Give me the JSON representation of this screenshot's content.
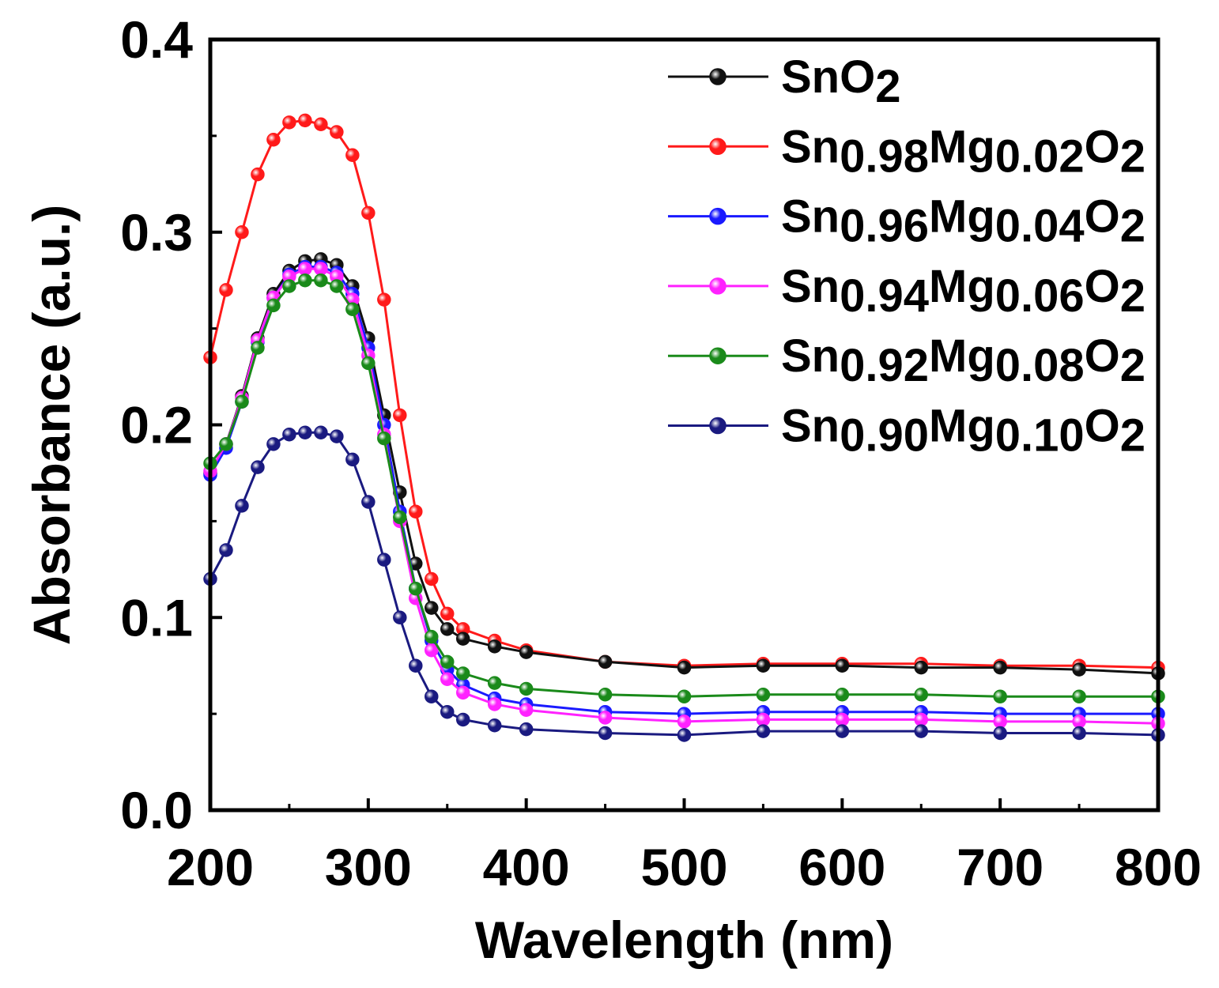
{
  "chart_data": {
    "type": "scatter",
    "xlabel": "Wavelength (nm)",
    "ylabel": "Absorbance (a.u.)",
    "xlim": [
      200,
      800
    ],
    "ylim": [
      0.0,
      0.4
    ],
    "x_ticks": [
      "200",
      "300",
      "400",
      "500",
      "600",
      "700",
      "800"
    ],
    "y_ticks": [
      "0.0",
      "0.1",
      "0.2",
      "0.3",
      "0.4"
    ],
    "grid": false,
    "legend_position": "top-right",
    "series": [
      {
        "name": "SnO2",
        "label": {
          "parts": [
            {
              "t": "SnO",
              "s": 0
            },
            {
              "t": "2",
              "s": -1
            }
          ]
        },
        "color": "#111111",
        "x": [
          200,
          210,
          220,
          230,
          240,
          250,
          260,
          270,
          280,
          290,
          300,
          310,
          320,
          330,
          340,
          350,
          360,
          380,
          400,
          450,
          500,
          550,
          600,
          650,
          700,
          750,
          800
        ],
        "y": [
          0.175,
          0.19,
          0.215,
          0.245,
          0.268,
          0.28,
          0.285,
          0.286,
          0.283,
          0.272,
          0.245,
          0.205,
          0.165,
          0.128,
          0.105,
          0.094,
          0.089,
          0.085,
          0.082,
          0.077,
          0.074,
          0.075,
          0.075,
          0.074,
          0.074,
          0.073,
          0.071
        ]
      },
      {
        "name": "Sn0.98Mg0.02O2",
        "label": {
          "parts": [
            {
              "t": "Sn",
              "s": 0
            },
            {
              "t": "0.98",
              "s": -1
            },
            {
              "t": "Mg",
              "s": 1
            },
            {
              "t": "0.02",
              "s": -1
            },
            {
              "t": "O",
              "s": 1
            },
            {
              "t": "2",
              "s": -1
            }
          ]
        },
        "color": "#ff1a1a",
        "x": [
          200,
          210,
          220,
          230,
          240,
          250,
          260,
          270,
          280,
          290,
          300,
          310,
          320,
          330,
          340,
          350,
          360,
          380,
          400,
          450,
          500,
          550,
          600,
          650,
          700,
          750,
          800
        ],
        "y": [
          0.235,
          0.27,
          0.3,
          0.33,
          0.348,
          0.357,
          0.358,
          0.356,
          0.352,
          0.34,
          0.31,
          0.265,
          0.205,
          0.155,
          0.12,
          0.102,
          0.094,
          0.088,
          0.083,
          0.077,
          0.075,
          0.076,
          0.076,
          0.076,
          0.075,
          0.075,
          0.074
        ]
      },
      {
        "name": "Sn0.96Mg0.04O2",
        "label": {
          "parts": [
            {
              "t": "Sn",
              "s": 0
            },
            {
              "t": "0.96",
              "s": -1
            },
            {
              "t": "Mg",
              "s": 1
            },
            {
              "t": "0.04",
              "s": -1
            },
            {
              "t": "O",
              "s": 1
            },
            {
              "t": "2",
              "s": -1
            }
          ]
        },
        "color": "#1a1aff",
        "x": [
          200,
          210,
          220,
          230,
          240,
          250,
          260,
          270,
          280,
          290,
          300,
          310,
          320,
          330,
          340,
          350,
          360,
          380,
          400,
          450,
          500,
          550,
          600,
          650,
          700,
          750,
          800
        ],
        "y": [
          0.174,
          0.188,
          0.212,
          0.243,
          0.266,
          0.278,
          0.282,
          0.282,
          0.279,
          0.268,
          0.24,
          0.2,
          0.155,
          0.115,
          0.088,
          0.073,
          0.065,
          0.058,
          0.055,
          0.051,
          0.05,
          0.051,
          0.051,
          0.051,
          0.05,
          0.05,
          0.05
        ]
      },
      {
        "name": "Sn0.94Mg0.06O2",
        "label": {
          "parts": [
            {
              "t": "Sn",
              "s": 0
            },
            {
              "t": "0.94",
              "s": -1
            },
            {
              "t": "Mg",
              "s": 1
            },
            {
              "t": "0.06",
              "s": -1
            },
            {
              "t": "O",
              "s": 1
            },
            {
              "t": "2",
              "s": -1
            }
          ]
        },
        "color": "#ff22ff",
        "x": [
          200,
          210,
          220,
          230,
          240,
          250,
          260,
          270,
          280,
          290,
          300,
          310,
          320,
          330,
          340,
          350,
          360,
          380,
          400,
          450,
          500,
          550,
          600,
          650,
          700,
          750,
          800
        ],
        "y": [
          0.176,
          0.19,
          0.214,
          0.244,
          0.266,
          0.277,
          0.281,
          0.281,
          0.277,
          0.265,
          0.236,
          0.195,
          0.15,
          0.11,
          0.083,
          0.068,
          0.061,
          0.055,
          0.052,
          0.048,
          0.046,
          0.047,
          0.047,
          0.047,
          0.046,
          0.046,
          0.045
        ]
      },
      {
        "name": "Sn0.92Mg0.08O2",
        "label": {
          "parts": [
            {
              "t": "Sn",
              "s": 0
            },
            {
              "t": "0.92",
              "s": -1
            },
            {
              "t": "Mg",
              "s": 1
            },
            {
              "t": "0.08",
              "s": -1
            },
            {
              "t": "O",
              "s": 1
            },
            {
              "t": "2",
              "s": -1
            }
          ]
        },
        "color": "#1a8a1a",
        "x": [
          200,
          210,
          220,
          230,
          240,
          250,
          260,
          270,
          280,
          290,
          300,
          310,
          320,
          330,
          340,
          350,
          360,
          380,
          400,
          450,
          500,
          550,
          600,
          650,
          700,
          750,
          800
        ],
        "y": [
          0.18,
          0.19,
          0.212,
          0.24,
          0.262,
          0.272,
          0.275,
          0.275,
          0.272,
          0.26,
          0.232,
          0.193,
          0.152,
          0.115,
          0.09,
          0.077,
          0.071,
          0.066,
          0.063,
          0.06,
          0.059,
          0.06,
          0.06,
          0.06,
          0.059,
          0.059,
          0.059
        ]
      },
      {
        "name": "Sn0.90Mg0.10O2",
        "label": {
          "parts": [
            {
              "t": "Sn",
              "s": 0
            },
            {
              "t": "0.90",
              "s": -1
            },
            {
              "t": "Mg",
              "s": 1
            },
            {
              "t": "0.10",
              "s": -1
            },
            {
              "t": "O",
              "s": 1
            },
            {
              "t": "2",
              "s": -1
            }
          ]
        },
        "color": "#1a1a80",
        "x": [
          200,
          210,
          220,
          230,
          240,
          250,
          260,
          270,
          280,
          290,
          300,
          310,
          320,
          330,
          340,
          350,
          360,
          380,
          400,
          450,
          500,
          550,
          600,
          650,
          700,
          750,
          800
        ],
        "y": [
          0.12,
          0.135,
          0.158,
          0.178,
          0.19,
          0.195,
          0.196,
          0.196,
          0.194,
          0.182,
          0.16,
          0.13,
          0.1,
          0.075,
          0.059,
          0.051,
          0.047,
          0.044,
          0.042,
          0.04,
          0.039,
          0.041,
          0.041,
          0.041,
          0.04,
          0.04,
          0.039
        ]
      }
    ]
  }
}
